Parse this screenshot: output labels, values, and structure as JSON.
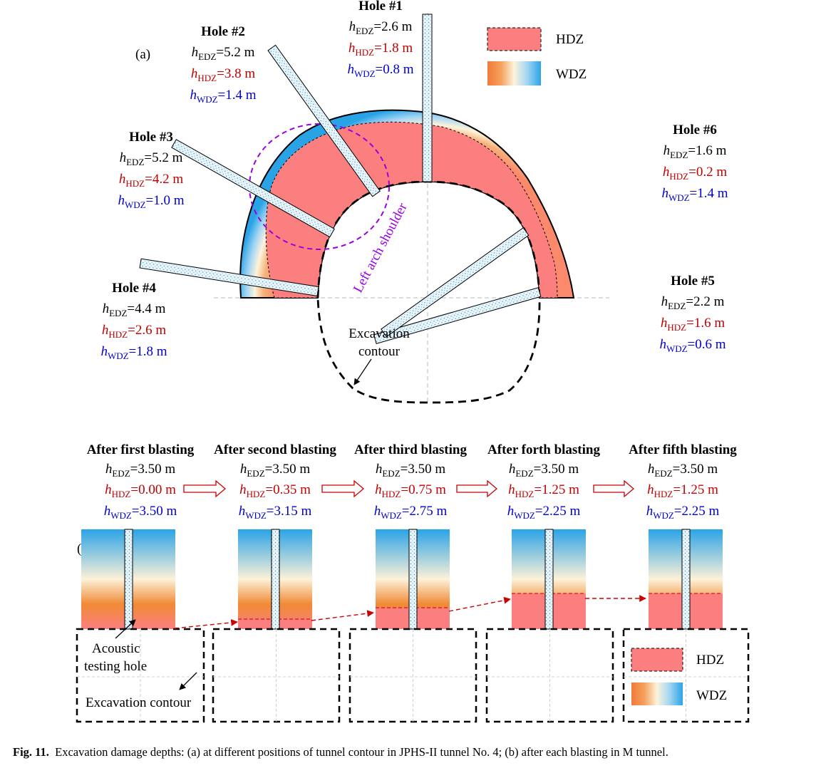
{
  "panel_a": {
    "label": "(a)",
    "holes": [
      {
        "name": "Hole #1",
        "edz": "2.6 m",
        "hdz": "1.8 m",
        "wdz": "0.8 m"
      },
      {
        "name": "Hole #2",
        "edz": "5.2 m",
        "hdz": "3.8 m",
        "wdz": "1.4 m"
      },
      {
        "name": "Hole #3",
        "edz": "5.2 m",
        "hdz": "4.2 m",
        "wdz": "1.0 m"
      },
      {
        "name": "Hole #4",
        "edz": "4.4 m",
        "hdz": "2.6 m",
        "wdz": "1.8 m"
      },
      {
        "name": "Hole #5",
        "edz": "2.2 m",
        "hdz": "1.6 m",
        "wdz": "0.6 m"
      },
      {
        "name": "Hole #6",
        "edz": "1.6 m",
        "hdz": "0.2 m",
        "wdz": "1.4 m"
      }
    ],
    "excavation_contour_label": [
      "Excavation",
      "contour"
    ],
    "shoulder_label": "Left arch shoulder",
    "legend": {
      "hdz": "HDZ",
      "wdz": "WDZ"
    }
  },
  "panel_b": {
    "label": "(b)",
    "stages": [
      {
        "title": "After first blasting",
        "edz": "3.50 m",
        "hdz": "0.00 m",
        "wdz": "3.50 m"
      },
      {
        "title": "After second blasting",
        "edz": "3.50 m",
        "hdz": "0.35 m",
        "wdz": "3.15 m"
      },
      {
        "title": "After third blasting",
        "edz": "3.50 m",
        "hdz": "0.75 m",
        "wdz": "2.75 m"
      },
      {
        "title": "After forth blasting",
        "edz": "3.50 m",
        "hdz": "1.25 m",
        "wdz": "2.25 m"
      },
      {
        "title": "After fifth blasting",
        "edz": "3.50 m",
        "hdz": "1.25 m",
        "wdz": "2.25 m"
      }
    ],
    "acoustic_label": [
      "Acoustic",
      "testing hole"
    ],
    "excavation_label": "Excavation contour",
    "legend": {
      "hdz": "HDZ",
      "wdz": "WDZ"
    }
  },
  "caption": {
    "label": "Fig. 11.",
    "text": "Excavation damage depths: (a) at different positions of tunnel contour in JPHS-II tunnel No. 4; (b) after each blasting in M tunnel."
  },
  "colors": {
    "hdz": "#fb7f7f",
    "wdz_red": "#fb8a6c",
    "wdz_orange": "#f08a36",
    "wdz_cream": "#fdf3dc",
    "wdz_blue": "#2aa3e6",
    "edz_label": "#000000",
    "hdz_label": "#c00000",
    "wdz_label": "#0000cc",
    "shoulder": "#9a00e0",
    "trend_arrow": "#cc0000"
  }
}
